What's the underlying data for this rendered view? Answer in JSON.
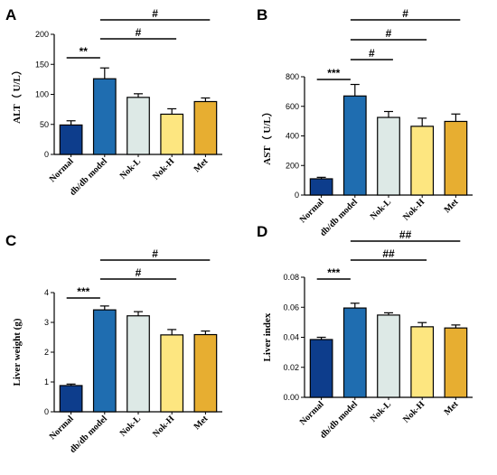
{
  "colors": [
    "#0d3d8c",
    "#1f6db0",
    "#dde9e6",
    "#fde680",
    "#e7ae31"
  ],
  "chart_data": [
    {
      "panel": "A",
      "type": "bar",
      "categories": [
        "Normal",
        "db/db model",
        "Nok-L",
        "Nok-H",
        "Met"
      ],
      "values": [
        49,
        126,
        95,
        67,
        88
      ],
      "errors": [
        7,
        18,
        6,
        9,
        6
      ],
      "ylabel": "ALT（ U/L）",
      "ylim": [
        0,
        200
      ],
      "yticks": [
        "0",
        "50",
        "100",
        "150",
        "200"
      ],
      "significance": [
        {
          "from": 0,
          "to": 1,
          "label": "**"
        },
        {
          "from": 1,
          "to": 3,
          "label": "#"
        },
        {
          "from": 1,
          "to": 4,
          "label": "#"
        }
      ]
    },
    {
      "panel": "B",
      "type": "bar",
      "categories": [
        "Normal",
        "db/db model",
        "Nok-L",
        "Nok-H",
        "Met"
      ],
      "values": [
        110,
        670,
        525,
        465,
        498
      ],
      "errors": [
        10,
        78,
        40,
        55,
        50
      ],
      "ylabel": "AST（ U/L）",
      "ylim": [
        0,
        800
      ],
      "yticks": [
        "0",
        "200",
        "400",
        "600",
        "800"
      ],
      "significance": [
        {
          "from": 0,
          "to": 1,
          "label": "***"
        },
        {
          "from": 1,
          "to": 2,
          "label": "#"
        },
        {
          "from": 1,
          "to": 3,
          "label": "#"
        },
        {
          "from": 1,
          "to": 4,
          "label": "#"
        }
      ]
    },
    {
      "panel": "C",
      "type": "bar",
      "categories": [
        "Normal",
        "db/db model",
        "Nok-L",
        "Nok-H",
        "Met"
      ],
      "values": [
        0.88,
        3.42,
        3.22,
        2.58,
        2.59
      ],
      "errors": [
        0.05,
        0.13,
        0.14,
        0.18,
        0.12
      ],
      "ylabel": "Liver weight (g)",
      "ylim": [
        0,
        4
      ],
      "yticks": [
        "0",
        "1",
        "2",
        "3",
        "4"
      ],
      "significance": [
        {
          "from": 0,
          "to": 1,
          "label": "***"
        },
        {
          "from": 1,
          "to": 3,
          "label": "#"
        },
        {
          "from": 1,
          "to": 4,
          "label": "#"
        }
      ]
    },
    {
      "panel": "D",
      "type": "bar",
      "categories": [
        "Normal",
        "db/db model",
        "Nok-L",
        "Nok-H",
        "Met"
      ],
      "values": [
        0.0385,
        0.0595,
        0.0548,
        0.047,
        0.0462
      ],
      "errors": [
        0.0015,
        0.0032,
        0.0015,
        0.0028,
        0.002
      ],
      "ylabel": "Liver index",
      "ylim": [
        0,
        0.08
      ],
      "yticks": [
        "0.00",
        "0.02",
        "0.04",
        "0.06",
        "0.08"
      ],
      "significance": [
        {
          "from": 0,
          "to": 1,
          "label": "***"
        },
        {
          "from": 1,
          "to": 3,
          "label": "##"
        },
        {
          "from": 1,
          "to": 4,
          "label": "##"
        }
      ]
    }
  ]
}
